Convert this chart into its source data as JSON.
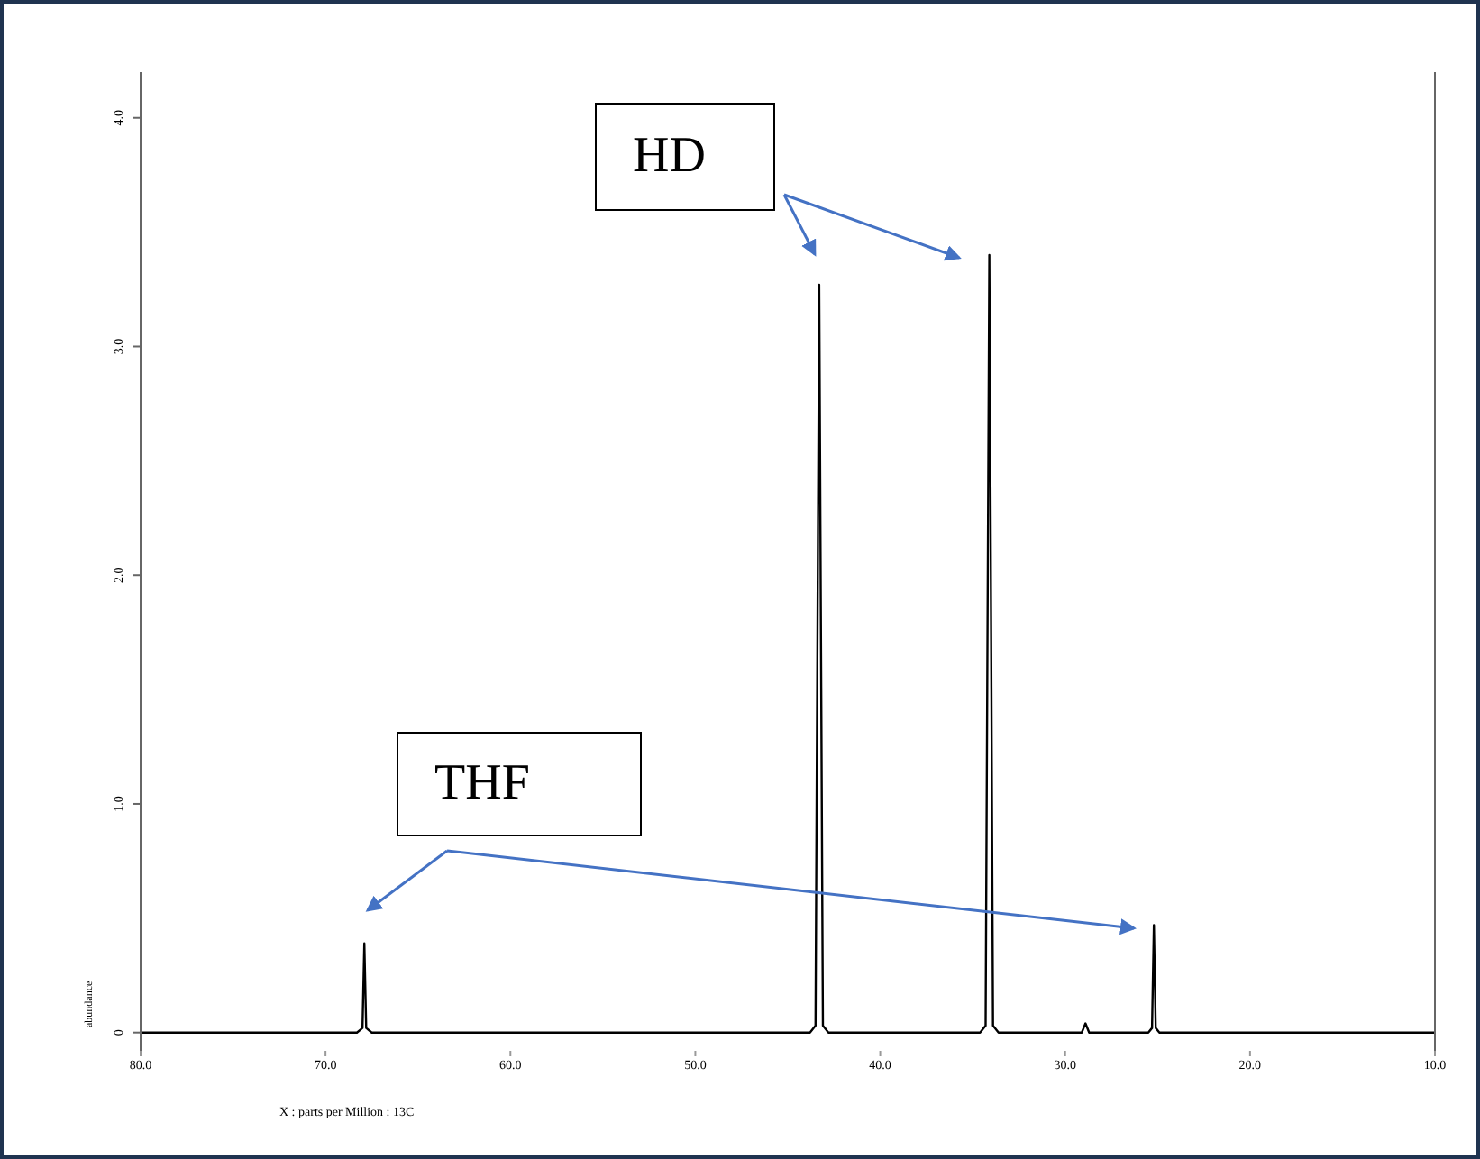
{
  "chart_data": {
    "type": "line",
    "xlabel": "X : parts per Million : 13C",
    "ylabel": "abundance",
    "x": [
      80,
      68.3,
      68.0,
      67.9,
      67.8,
      67.5,
      43.8,
      43.5,
      43.3,
      43.1,
      42.8,
      34.6,
      34.3,
      34.1,
      33.9,
      33.6,
      29.1,
      28.9,
      28.7,
      25.5,
      25.3,
      25.2,
      25.1,
      24.9,
      10
    ],
    "series": [
      {
        "color": "#000000",
        "values": [
          0,
          0,
          0.02,
          0.39,
          0.02,
          0,
          0,
          0.03,
          3.27,
          0.03,
          0,
          0,
          0.03,
          3.4,
          0.03,
          0,
          0,
          0.04,
          0,
          0,
          0.02,
          0.47,
          0.02,
          0,
          0
        ]
      }
    ],
    "xlim": [
      80,
      10
    ],
    "xticks": [
      {
        "value": 80,
        "label": "80.0"
      },
      {
        "value": 70,
        "label": "70.0"
      },
      {
        "value": 60,
        "label": "60.0"
      },
      {
        "value": 50,
        "label": "50.0"
      },
      {
        "value": 40,
        "label": "40.0"
      },
      {
        "value": 30,
        "label": "30.0"
      },
      {
        "value": 20,
        "label": "20.0"
      },
      {
        "value": 10,
        "label": "10.0"
      }
    ],
    "ylim": [
      -0.08,
      4.2
    ],
    "yticks": [
      0,
      {
        "value": 1,
        "label": "1.0"
      },
      {
        "value": 2,
        "label": "2.0"
      },
      {
        "value": 3,
        "label": "3.0"
      },
      {
        "value": 4,
        "label": "4.0"
      }
    ],
    "grid": false,
    "legend": false,
    "marker": "none",
    "line_style": "solid",
    "annotations": [
      "HD",
      "THF"
    ]
  }
}
